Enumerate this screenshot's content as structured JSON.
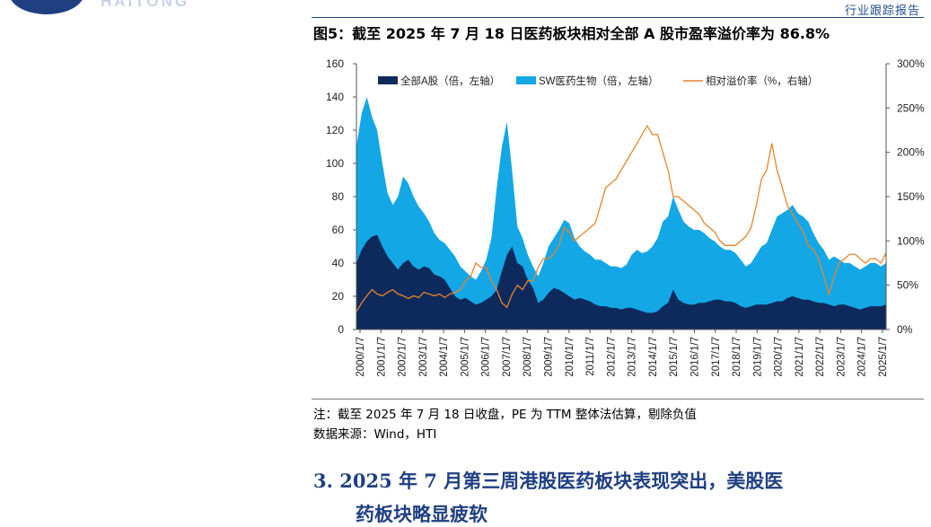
{
  "header": {
    "brand": "HAITONG",
    "report_type": "行业跟踪报告"
  },
  "figure": {
    "title": "图5：截至 2025 年 7 月 18 日医药板块相对全部 A 股市盈率溢价率为 86.8%",
    "note": "注：截至 2025 年 7 月 18 日收盘，PE 为 TTM 整体法估算，剔除负值",
    "source": "数据来源：Wind，HTI"
  },
  "section": {
    "heading": "3.  2025 年 7 月第三周港股医药板块表现突出，美股医",
    "heading_cont": "药板块略显疲软"
  },
  "colors": {
    "all_a": "#0e2a5c",
    "sw_pharma": "#13a7e6",
    "premium": "#e8842c",
    "section": "#1f3f82"
  },
  "chart_data": {
    "type": "area",
    "title": "",
    "legend_position": "top",
    "legend": [
      "全部A股（倍，左轴）",
      "SW医药生物（倍，左轴）",
      "相对溢价率（%，右轴）"
    ],
    "y_left": {
      "min": 0,
      "max": 160,
      "ticks": [
        "0",
        "20",
        "40",
        "60",
        "80",
        "100",
        "120",
        "140",
        "160"
      ]
    },
    "y_right": {
      "min": 0,
      "max": 300,
      "ticks": [
        "0%",
        "50%",
        "100%",
        "150%",
        "200%",
        "250%",
        "300%"
      ]
    },
    "x_ticks": [
      "2000/1/7",
      "2001/1/7",
      "2002/1/7",
      "2003/1/7",
      "2004/1/7",
      "2005/1/7",
      "2006/1/7",
      "2007/1/7",
      "2008/1/7",
      "2009/1/7",
      "2010/1/7",
      "2011/1/7",
      "2012/1/7",
      "2013/1/7",
      "2014/1/7",
      "2015/1/7",
      "2016/1/7",
      "2017/1/7",
      "2018/1/7",
      "2019/1/7",
      "2020/1/7",
      "2021/1/7",
      "2022/1/7",
      "2023/1/7",
      "2024/1/7",
      "2025/1/7"
    ],
    "x": [
      "2000-01",
      "2000-04",
      "2000-07",
      "2000-10",
      "2001-01",
      "2001-04",
      "2001-07",
      "2001-10",
      "2002-01",
      "2002-04",
      "2002-07",
      "2002-10",
      "2003-01",
      "2003-04",
      "2003-07",
      "2003-10",
      "2004-01",
      "2004-04",
      "2004-07",
      "2004-10",
      "2005-01",
      "2005-04",
      "2005-07",
      "2005-10",
      "2006-01",
      "2006-04",
      "2006-07",
      "2006-10",
      "2007-01",
      "2007-04",
      "2007-07",
      "2007-10",
      "2008-01",
      "2008-04",
      "2008-07",
      "2008-10",
      "2009-01",
      "2009-04",
      "2009-07",
      "2009-10",
      "2010-01",
      "2010-04",
      "2010-07",
      "2010-10",
      "2011-01",
      "2011-04",
      "2011-07",
      "2011-10",
      "2012-01",
      "2012-04",
      "2012-07",
      "2012-10",
      "2013-01",
      "2013-04",
      "2013-07",
      "2013-10",
      "2014-01",
      "2014-04",
      "2014-07",
      "2014-10",
      "2015-01",
      "2015-04",
      "2015-07",
      "2015-10",
      "2016-01",
      "2016-04",
      "2016-07",
      "2016-10",
      "2017-01",
      "2017-04",
      "2017-07",
      "2017-10",
      "2018-01",
      "2018-04",
      "2018-07",
      "2018-10",
      "2019-01",
      "2019-04",
      "2019-07",
      "2019-10",
      "2020-01",
      "2020-04",
      "2020-07",
      "2020-10",
      "2021-01",
      "2021-04",
      "2021-07",
      "2021-10",
      "2022-01",
      "2022-04",
      "2022-07",
      "2022-10",
      "2023-01",
      "2023-04",
      "2023-07",
      "2023-10",
      "2024-01",
      "2024-04",
      "2024-07",
      "2024-10",
      "2025-01",
      "2025-04",
      "2025-07"
    ],
    "series": [
      {
        "name": "全部A股（倍，左轴）",
        "axis": "left",
        "type": "area",
        "values": [
          40,
          48,
          53,
          56,
          57,
          50,
          44,
          40,
          36,
          40,
          42,
          38,
          36,
          38,
          37,
          33,
          32,
          30,
          25,
          20,
          18,
          19,
          17,
          15,
          16,
          18,
          20,
          24,
          35,
          45,
          50,
          40,
          38,
          30,
          25,
          16,
          18,
          22,
          25,
          24,
          22,
          20,
          18,
          19,
          18,
          17,
          15,
          14,
          14,
          13,
          13,
          12,
          13,
          13,
          12,
          11,
          10,
          10,
          11,
          14,
          16,
          24,
          18,
          16,
          15,
          15,
          16,
          16,
          17,
          18,
          18,
          17,
          17,
          16,
          14,
          13,
          14,
          15,
          15,
          15,
          16,
          17,
          17,
          19,
          20,
          19,
          18,
          18,
          17,
          16,
          16,
          15,
          14,
          15,
          15,
          14,
          13,
          12,
          13,
          14,
          14,
          14,
          15
        ]
      },
      {
        "name": "SW医药生物（倍，左轴）",
        "axis": "left",
        "type": "area",
        "values": [
          110,
          130,
          140,
          128,
          120,
          100,
          82,
          75,
          80,
          92,
          88,
          80,
          74,
          70,
          65,
          58,
          54,
          52,
          48,
          44,
          38,
          35,
          32,
          30,
          35,
          42,
          55,
          85,
          110,
          125,
          95,
          62,
          55,
          45,
          38,
          32,
          40,
          50,
          55,
          60,
          66,
          64,
          55,
          50,
          47,
          45,
          42,
          42,
          40,
          38,
          38,
          37,
          39,
          45,
          48,
          46,
          47,
          50,
          55,
          65,
          68,
          80,
          72,
          65,
          62,
          60,
          60,
          58,
          55,
          53,
          50,
          48,
          48,
          46,
          42,
          38,
          40,
          45,
          50,
          52,
          60,
          68,
          70,
          72,
          75,
          70,
          68,
          65,
          58,
          52,
          48,
          42,
          44,
          42,
          40,
          40,
          38,
          36,
          38,
          40,
          40,
          38,
          40
        ]
      },
      {
        "name": "相对溢价率（%，右轴）",
        "axis": "right",
        "type": "line",
        "values": [
          20,
          30,
          38,
          45,
          40,
          38,
          42,
          45,
          40,
          38,
          35,
          38,
          36,
          42,
          40,
          38,
          40,
          36,
          40,
          42,
          45,
          55,
          60,
          75,
          70,
          70,
          55,
          45,
          30,
          25,
          40,
          50,
          45,
          55,
          55,
          70,
          80,
          80,
          85,
          95,
          115,
          110,
          100,
          105,
          110,
          115,
          120,
          140,
          160,
          165,
          170,
          180,
          190,
          200,
          210,
          220,
          230,
          220,
          220,
          200,
          180,
          150,
          150,
          145,
          140,
          135,
          130,
          120,
          115,
          110,
          100,
          95,
          95,
          95,
          100,
          105,
          115,
          140,
          170,
          180,
          210,
          180,
          160,
          140,
          130,
          120,
          110,
          95,
          90,
          80,
          60,
          40,
          60,
          75,
          80,
          85,
          85,
          80,
          75,
          80,
          80,
          75,
          86.8
        ]
      }
    ]
  }
}
